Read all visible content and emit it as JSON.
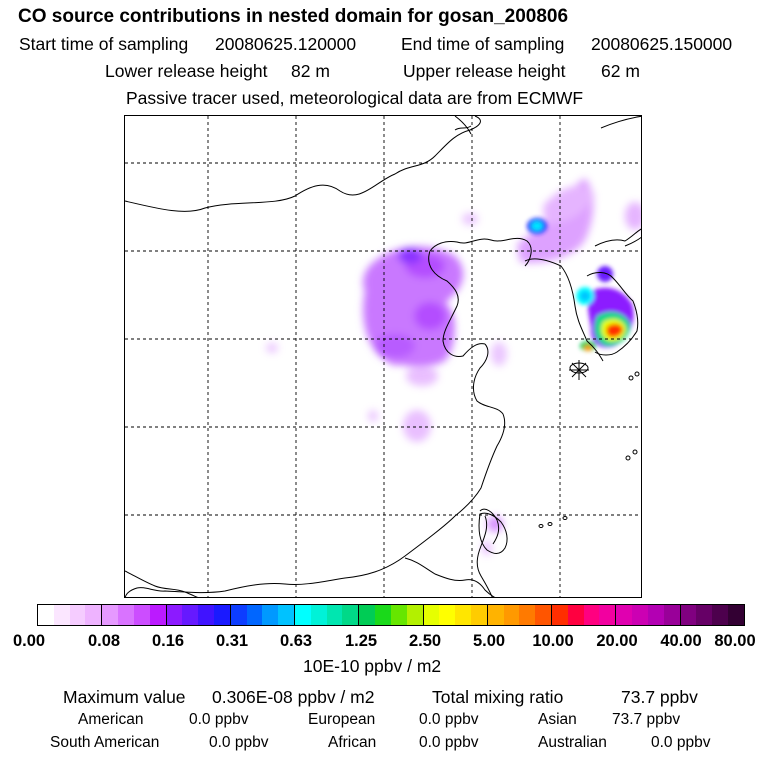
{
  "title": "CO  source contributions in nested domain for gosan_200806",
  "sampling": {
    "start_label": "Start time of sampling",
    "start_value": "20080625.120000",
    "end_label": "End time of sampling",
    "end_value": "20080625.150000"
  },
  "release": {
    "lower_label": "Lower release height",
    "lower_value": "82 m",
    "upper_label": "Upper release height",
    "upper_value": "62 m"
  },
  "tracer_note": "Passive tracer used, meteorological data are from ECMWF",
  "colorbar": {
    "ticks": [
      "0.00",
      "0.08",
      "0.16",
      "0.31",
      "0.63",
      "1.25",
      "2.50",
      "5.00",
      "10.00",
      "20.00",
      "40.00",
      "80.00"
    ],
    "unit": "10E-10 ppbv / m2",
    "colors": [
      "#ffffff",
      "#fbe6ff",
      "#f5ccff",
      "#eeb3ff",
      "#e699ff",
      "#d973ff",
      "#cc4dff",
      "#bb1aff",
      "#8c1aff",
      "#6619ff",
      "#4013ff",
      "#1a1aff",
      "#0d3dff",
      "#0066ff",
      "#0099ff",
      "#00c2ff",
      "#00ffff",
      "#00f2d8",
      "#00e6b0",
      "#00d988",
      "#00cc55",
      "#1ad91a",
      "#66e600",
      "#b3f000",
      "#e6ff00",
      "#ffff00",
      "#ffe600",
      "#ffcc00",
      "#ffb300",
      "#ff9900",
      "#ff7a00",
      "#ff5500",
      "#ff2e00",
      "#ff0040",
      "#ff0080",
      "#f200a0",
      "#e000b0",
      "#cc00b3",
      "#b300b3",
      "#990099",
      "#800080",
      "#660066",
      "#4d004d",
      "#330033"
    ]
  },
  "stats": {
    "max_label": "Maximum value",
    "max_value": "0.306E-08 ppbv / m2",
    "total_label": "Total mixing ratio",
    "total_value": "73.7 ppbv",
    "american_label": "American",
    "american_value": "0.0 ppbv",
    "european_label": "European",
    "european_value": "0.0 ppbv",
    "asian_label": "Asian",
    "asian_value": "73.7 ppbv",
    "south_american_label": "South American",
    "south_american_value": "0.0 ppbv",
    "african_label": "African",
    "african_value": "0.0 ppbv",
    "australian_label": "Australian",
    "australian_value": "0.0 ppbv"
  }
}
